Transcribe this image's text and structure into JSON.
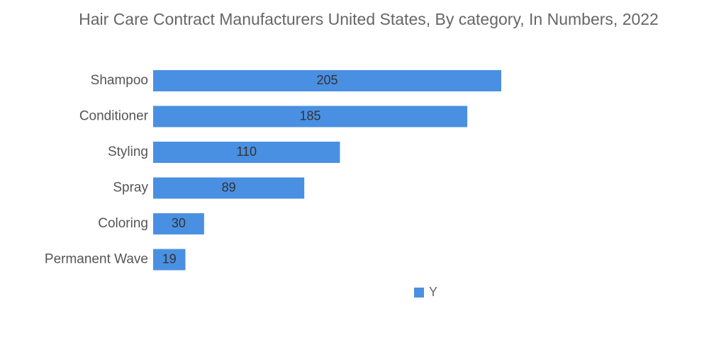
{
  "chart_data": {
    "type": "bar",
    "orientation": "horizontal",
    "title": "Hair Care Contract Manufacturers  United States, By category, In Numbers, 2022",
    "categories": [
      "Shampoo",
      "Conditioner",
      "Styling",
      "Spray",
      "Coloring",
      "Permanent Wave"
    ],
    "series": [
      {
        "name": "Y",
        "values": [
          205,
          185,
          110,
          89,
          30,
          19
        ],
        "color": "#4a90e2"
      }
    ],
    "xlim": [
      0,
      205
    ],
    "grid": false,
    "data_labels": true,
    "legend": "bottom"
  }
}
